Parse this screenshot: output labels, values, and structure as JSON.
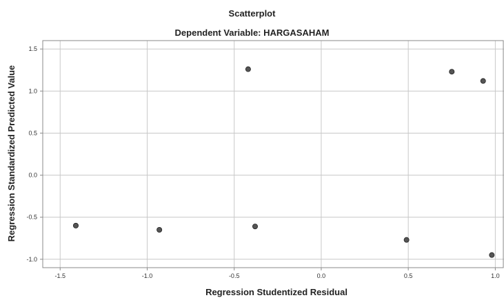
{
  "chart_data": {
    "type": "scatter",
    "title": "Scatterplot",
    "subtitle": "Dependent Variable: HARGASAHAM",
    "xlabel": "Regression Studentized Residual",
    "ylabel": "Regression Standardized Predicted Value",
    "xlim": [
      -1.6,
      1.05
    ],
    "ylim": [
      -1.1,
      1.6
    ],
    "xticks": [
      -1.5,
      -1.0,
      -0.5,
      0.0,
      0.5,
      1.0
    ],
    "xtick_labels": [
      "-1.5",
      "-1.0",
      "-0.5",
      "0.0",
      "0.5",
      "1.0"
    ],
    "yticks": [
      -1.0,
      -0.5,
      0.0,
      0.5,
      1.0,
      1.5
    ],
    "ytick_labels": [
      "-1.0",
      "-0.5",
      "0.0",
      "0.5",
      "1.0",
      "1.5"
    ],
    "grid": true,
    "points": [
      {
        "x": -1.41,
        "y": -0.6
      },
      {
        "x": -0.93,
        "y": -0.65
      },
      {
        "x": -0.42,
        "y": 1.26
      },
      {
        "x": -0.38,
        "y": -0.61
      },
      {
        "x": 0.49,
        "y": -0.77
      },
      {
        "x": 0.75,
        "y": 1.23
      },
      {
        "x": 0.93,
        "y": 1.12
      },
      {
        "x": 0.98,
        "y": -0.95
      }
    ],
    "colors": {
      "marker": "#555555",
      "marker_edge": "#222222",
      "grid": "#c8c8c8",
      "frame": "#8a8a8a"
    }
  }
}
